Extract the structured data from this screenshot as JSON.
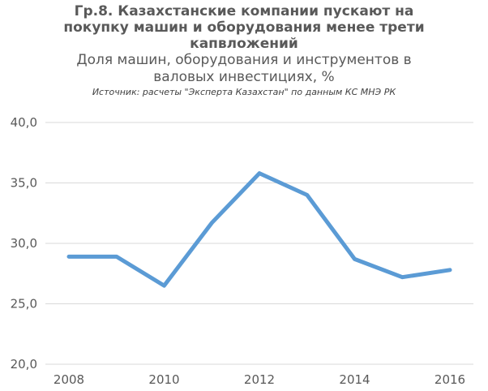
{
  "chart_data": {
    "type": "line",
    "title": "Гр.8. Казахстанские компании пускают на покупку машин и оборудования менее трети капвложений",
    "subtitle": "Доля машин, оборудования и инструментов в валовых инвестициях, %",
    "source": "Источник: расчеты \"Эксперта Казахстан\" по данным КС МНЭ РК",
    "xlabel": "",
    "ylabel": "",
    "x": [
      2008,
      2009,
      2010,
      2011,
      2012,
      2013,
      2014,
      2015,
      2016
    ],
    "series": [
      {
        "values": [
          28.9,
          28.9,
          26.5,
          31.7,
          35.8,
          34.0,
          28.7,
          27.2,
          27.8
        ]
      }
    ],
    "x_tick_labels": [
      "2008",
      "2010",
      "2012",
      "2014",
      "2016"
    ],
    "y_tick_labels": [
      "20,0",
      "25,0",
      "30,0",
      "35,0",
      "40,0"
    ],
    "ylim": [
      20,
      40
    ],
    "xlim": [
      2008,
      2016
    ],
    "grid": "horizontal",
    "legend": "none",
    "colors": {
      "line": "#5b9bd5",
      "grid": "#d9d9d9",
      "axis": "#d9d9d9",
      "text": "#595959"
    }
  }
}
